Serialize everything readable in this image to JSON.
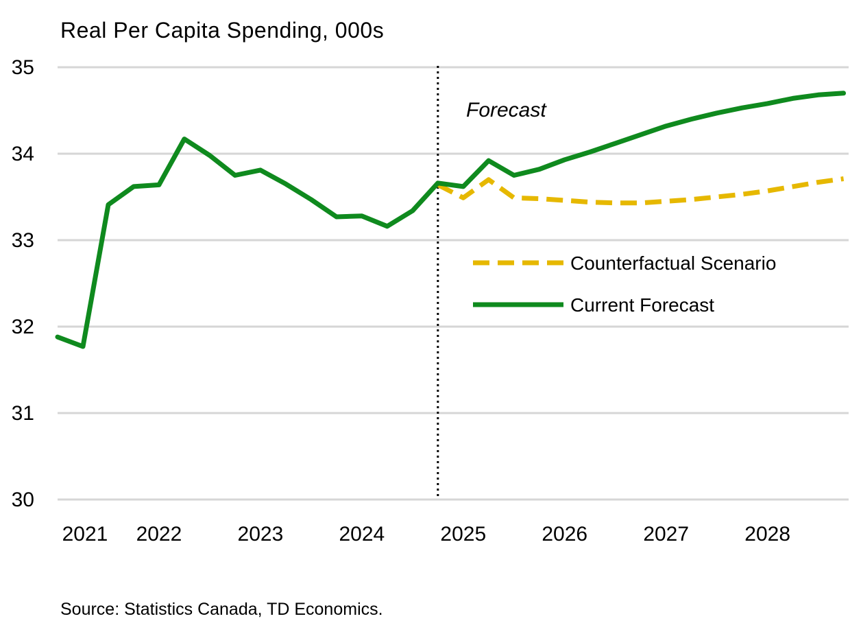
{
  "chart_data": {
    "type": "line",
    "title": "Real Per Capita Spending, 000s",
    "source": "Source: Statistics Canada, TD Economics.",
    "annotation": "Forecast",
    "forecast_start": 2024.75,
    "xlim": [
      2021,
      2028.8
    ],
    "ylim": [
      30,
      35
    ],
    "y_ticks": [
      30,
      31,
      32,
      33,
      34,
      35
    ],
    "x_ticks": [
      2021,
      2022,
      2023,
      2024,
      2025,
      2026,
      2027,
      2028
    ],
    "x_tick_labels": [
      "2021",
      "2022",
      "2023",
      "2024",
      "2025",
      "2026",
      "2027",
      "2028"
    ],
    "grid": "horizontal",
    "legend_position": "right-middle",
    "series": [
      {
        "name": "Counterfactual Scenario",
        "style": "dashed",
        "color": "#E6B800",
        "x": [
          2024.75,
          2025.0,
          2025.25,
          2025.5,
          2025.75,
          2026.0,
          2026.25,
          2026.5,
          2026.75,
          2027.0,
          2027.25,
          2027.5,
          2027.75,
          2028.0,
          2028.25,
          2028.5,
          2028.75
        ],
        "values": [
          33.64,
          33.49,
          33.7,
          33.49,
          33.48,
          33.46,
          33.44,
          33.43,
          33.43,
          33.45,
          33.47,
          33.5,
          33.53,
          33.57,
          33.62,
          33.67,
          33.71
        ]
      },
      {
        "name": "Current Forecast",
        "style": "solid",
        "color": "#0F8A1E",
        "x": [
          2021.0,
          2021.25,
          2021.5,
          2021.75,
          2022.0,
          2022.25,
          2022.5,
          2022.75,
          2023.0,
          2023.25,
          2023.5,
          2023.75,
          2024.0,
          2024.25,
          2024.5,
          2024.75,
          2025.0,
          2025.25,
          2025.5,
          2025.75,
          2026.0,
          2026.25,
          2026.5,
          2026.75,
          2027.0,
          2027.25,
          2027.5,
          2027.75,
          2028.0,
          2028.25,
          2028.5,
          2028.75
        ],
        "values": [
          31.88,
          31.77,
          33.41,
          33.62,
          33.64,
          34.17,
          33.98,
          33.75,
          33.81,
          33.65,
          33.47,
          33.27,
          33.28,
          33.16,
          33.34,
          33.66,
          33.62,
          33.92,
          33.75,
          33.82,
          33.93,
          34.02,
          34.12,
          34.22,
          34.32,
          34.4,
          34.47,
          34.53,
          34.58,
          34.64,
          34.68,
          34.7
        ]
      }
    ]
  }
}
